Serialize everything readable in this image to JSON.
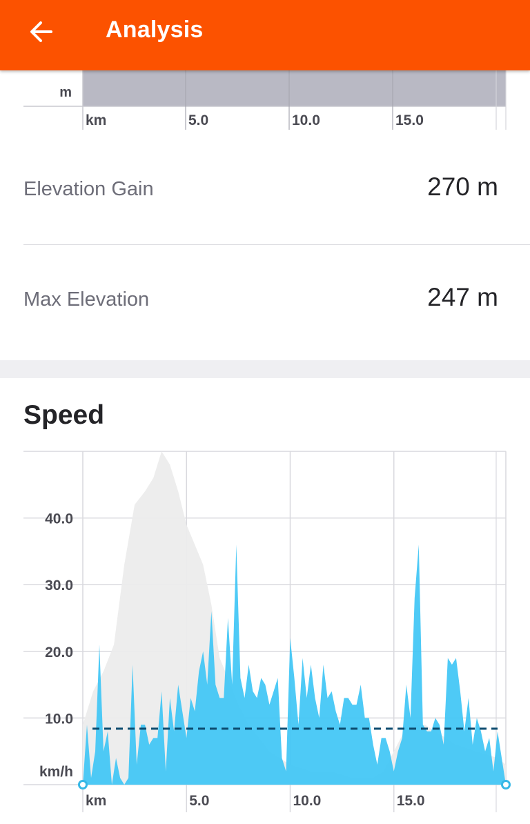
{
  "appbar": {
    "title": "Analysis",
    "back_icon": "arrow-left-icon",
    "background": "#fc5200"
  },
  "elevation_chart": {
    "unit_label": "m",
    "x_unit_label": "km",
    "x_ticks": [
      "5.0",
      "10.0",
      "15.0"
    ]
  },
  "stats": [
    {
      "label": "Elevation Gain",
      "value": "270 m"
    },
    {
      "label": "Max Elevation",
      "value": "247 m"
    }
  ],
  "speed": {
    "title": "Speed"
  },
  "chart_data": {
    "type": "area",
    "x_unit": "km",
    "y_unit": "km/h",
    "x_range": [
      0,
      20.4
    ],
    "y_range": [
      0,
      50
    ],
    "x_ticks": [
      5,
      10,
      15
    ],
    "x_tick_labels": [
      "5.0",
      "10.0",
      "15.0"
    ],
    "y_ticks": [
      10,
      20,
      30,
      40
    ],
    "y_tick_labels": [
      "10.0",
      "20.0",
      "30.0",
      "40.0"
    ],
    "average_speed": 8.4,
    "grid": true,
    "colors": {
      "speed": "#3fc6f5",
      "elevation": "#ececec",
      "average": "#0b4a6e",
      "grid": "#d9d9de"
    },
    "speed": {
      "x": [
        0,
        0.2,
        0.4,
        0.6,
        0.8,
        1.0,
        1.2,
        1.4,
        1.6,
        1.8,
        2.0,
        2.2,
        2.4,
        2.6,
        2.8,
        3.0,
        3.2,
        3.4,
        3.6,
        3.8,
        4.0,
        4.2,
        4.4,
        4.6,
        4.8,
        5.0,
        5.2,
        5.4,
        5.6,
        5.8,
        6.0,
        6.2,
        6.4,
        6.6,
        6.8,
        7.0,
        7.2,
        7.4,
        7.6,
        7.8,
        8.0,
        8.2,
        8.4,
        8.6,
        8.8,
        9.0,
        9.2,
        9.4,
        9.6,
        9.8,
        10.0,
        10.2,
        10.4,
        10.6,
        10.8,
        11.0,
        11.2,
        11.4,
        11.6,
        11.8,
        12.0,
        12.2,
        12.4,
        12.6,
        12.8,
        13.0,
        13.2,
        13.4,
        13.6,
        13.8,
        14.0,
        14.2,
        14.4,
        14.6,
        14.8,
        15.0,
        15.2,
        15.4,
        15.6,
        15.8,
        16.0,
        16.2,
        16.4,
        16.6,
        16.8,
        17.0,
        17.2,
        17.4,
        17.6,
        17.8,
        18.0,
        18.2,
        18.4,
        18.6,
        18.8,
        19.0,
        19.2,
        19.4,
        19.6,
        19.8,
        20.0,
        20.2,
        20.4
      ],
      "values": [
        0,
        9,
        1,
        5,
        21,
        5,
        8,
        0,
        4,
        1,
        0,
        1,
        18,
        3,
        9,
        9,
        6,
        7,
        7,
        14,
        2,
        13,
        8,
        15,
        11,
        7,
        13,
        11,
        17,
        20,
        15,
        26,
        15,
        13,
        13,
        25,
        15,
        36,
        16,
        13,
        18,
        14,
        13,
        16,
        15,
        12,
        14,
        16,
        4,
        2,
        22,
        16,
        9,
        19,
        13,
        18,
        13,
        10,
        18,
        13,
        14,
        11,
        9,
        13,
        13,
        12,
        12,
        15,
        10,
        10,
        6,
        3,
        7,
        7,
        5,
        2,
        5,
        7,
        15,
        10,
        28,
        36,
        9,
        8,
        8,
        10,
        9,
        6,
        19,
        18,
        19,
        14,
        8,
        13,
        6,
        10,
        8,
        5,
        7,
        2,
        8,
        4,
        0
      ]
    },
    "elevation_profile": {
      "x": [
        0,
        0.5,
        1.0,
        1.5,
        2.0,
        2.5,
        3.0,
        3.4,
        3.8,
        4.2,
        4.6,
        5.0,
        5.4,
        5.8,
        6.2,
        6.6,
        7.0,
        7.5,
        8.0,
        8.5,
        9.0,
        9.5,
        10.0,
        11.0,
        12.0,
        13.0,
        14.0,
        14.5,
        15.0,
        15.5,
        16.0,
        16.5,
        17.0,
        18.0,
        19.0,
        20.0,
        20.4
      ],
      "values": [
        9,
        14,
        17,
        21,
        33,
        42,
        44,
        46,
        50,
        48,
        44,
        39,
        36,
        33,
        27,
        19,
        16,
        12,
        9,
        7,
        5,
        4,
        3,
        2,
        2,
        1,
        1,
        2,
        5,
        8,
        9,
        9,
        8,
        6,
        5,
        4,
        3
      ]
    }
  }
}
